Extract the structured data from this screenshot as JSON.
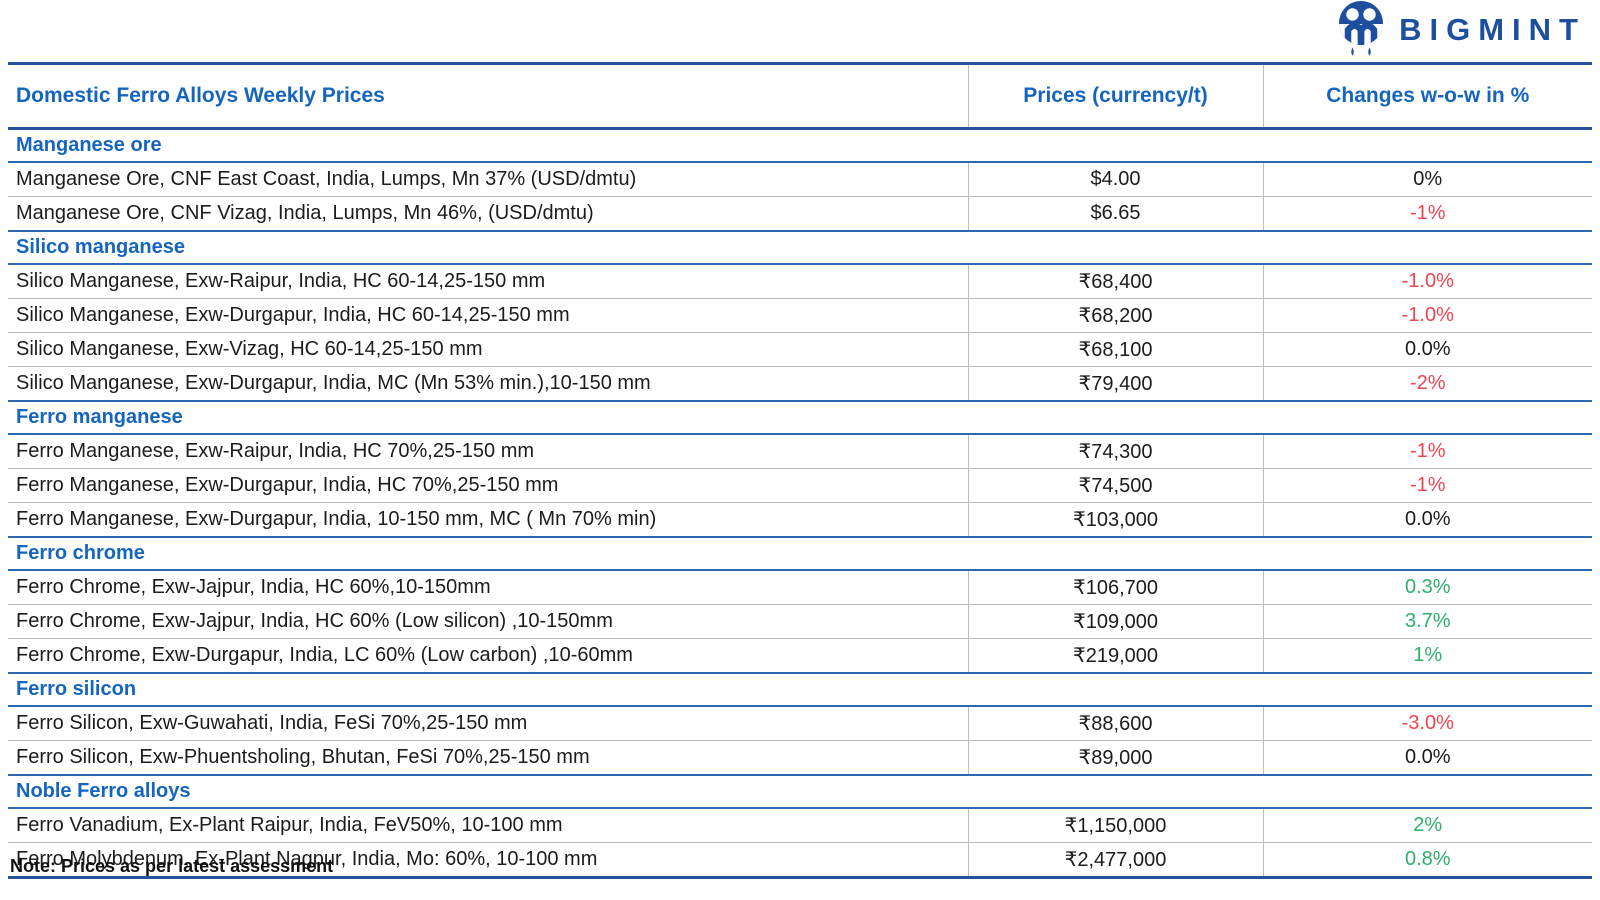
{
  "logo": {
    "brand": "BIGMINT",
    "icon": "bigmint-people-circle-icon",
    "brand_color": "#1d4f9e"
  },
  "table": {
    "title": "Domestic Ferro Alloys Weekly Prices",
    "columns": [
      "Prices (currency/t)",
      "Changes w-o-w in %"
    ],
    "sections": [
      {
        "name": "Manganese ore",
        "rows": [
          {
            "product": "Manganese Ore, CNF East Coast, India, Lumps, Mn 37% (USD/dmtu)",
            "price": "$4.00",
            "change": "0%",
            "trend": "flat"
          },
          {
            "product": "Manganese Ore, CNF Vizag, India, Lumps, Mn 46%, (USD/dmtu)",
            "price": "$6.65",
            "change": "-1%",
            "trend": "down"
          }
        ]
      },
      {
        "name": "Silico manganese",
        "rows": [
          {
            "product": "Silico Manganese, Exw-Raipur, India, HC 60-14,25-150 mm",
            "price": "₹68,400",
            "change": "-1.0%",
            "trend": "down"
          },
          {
            "product": "Silico Manganese, Exw-Durgapur, India, HC 60-14,25-150 mm",
            "price": "₹68,200",
            "change": "-1.0%",
            "trend": "down"
          },
          {
            "product": "Silico Manganese, Exw-Vizag, HC 60-14,25-150 mm",
            "price": "₹68,100",
            "change": "0.0%",
            "trend": "flat"
          },
          {
            "product": "Silico Manganese, Exw-Durgapur, India, MC (Mn 53% min.),10-150 mm",
            "price": "₹79,400",
            "change": "-2%",
            "trend": "down"
          }
        ]
      },
      {
        "name": "Ferro manganese",
        "rows": [
          {
            "product": "Ferro Manganese, Exw-Raipur, India, HC 70%,25-150 mm",
            "price": "₹74,300",
            "change": "-1%",
            "trend": "down"
          },
          {
            "product": "Ferro Manganese, Exw-Durgapur, India, HC 70%,25-150 mm",
            "price": "₹74,500",
            "change": "-1%",
            "trend": "down"
          },
          {
            "product": "Ferro Manganese, Exw-Durgapur, India, 10-150 mm, MC ( Mn 70% min)",
            "price": "₹103,000",
            "change": "0.0%",
            "trend": "flat"
          }
        ]
      },
      {
        "name": "Ferro chrome",
        "rows": [
          {
            "product": "Ferro Chrome, Exw-Jajpur, India, HC 60%,10-150mm",
            "price": "₹106,700",
            "change": "0.3%",
            "trend": "up"
          },
          {
            "product": "Ferro Chrome, Exw-Jajpur, India, HC 60% (Low silicon) ,10-150mm",
            "price": "₹109,000",
            "change": "3.7%",
            "trend": "up"
          },
          {
            "product": "Ferro Chrome, Exw-Durgapur, India, LC 60% (Low carbon) ,10-60mm",
            "price": "₹219,000",
            "change": "1%",
            "trend": "up"
          }
        ]
      },
      {
        "name": "Ferro silicon",
        "rows": [
          {
            "product": "Ferro Silicon, Exw-Guwahati, India, FeSi 70%,25-150 mm",
            "price": "₹88,600",
            "change": "-3.0%",
            "trend": "down"
          },
          {
            "product": "Ferro Silicon, Exw-Phuentsholing, Bhutan, FeSi 70%,25-150 mm",
            "price": "₹89,000",
            "change": "0.0%",
            "trend": "flat"
          }
        ]
      },
      {
        "name": "Noble Ferro alloys",
        "rows": [
          {
            "product": "Ferro Vanadium, Ex-Plant Raipur, India, FeV50%,  10-100 mm",
            "price": "₹1,150,000",
            "change": "2%",
            "trend": "up"
          },
          {
            "product": "Ferro Molybdenum, Ex-Plant Nagpur, India, Mo: 60%, 10-100 mm",
            "price": "₹2,477,000",
            "change": "0.8%",
            "trend": "up"
          }
        ]
      }
    ]
  },
  "note": "Note: Prices as per latest assessment",
  "colors": {
    "heading_blue": "#1565c0",
    "border_blue": "#24549c",
    "section_border_blue": "#2e68ae",
    "divider_gray": "#bdbdbd",
    "negative_red": "#ec4552",
    "positive_green": "#2cb06a",
    "neutral_text": "#1c1c1c"
  }
}
